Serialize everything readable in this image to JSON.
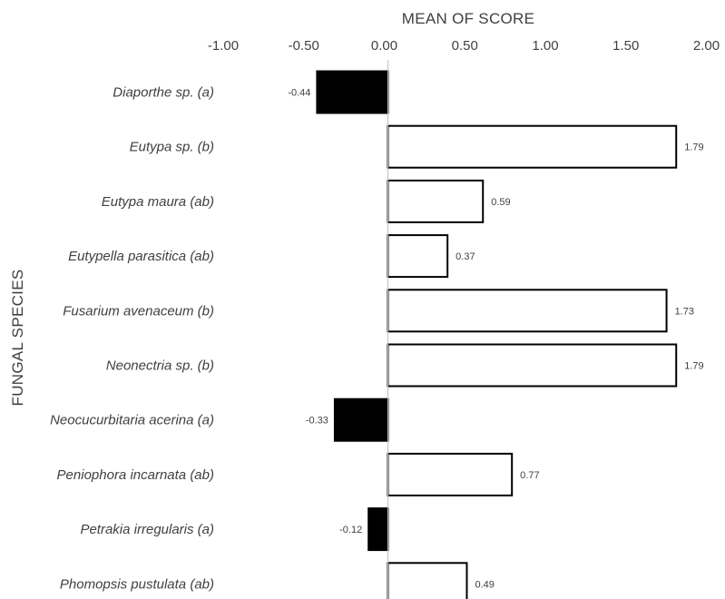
{
  "chart_data": {
    "type": "bar",
    "orientation": "horizontal",
    "title": "",
    "xlabel": "MEAN OF SCORE",
    "ylabel": "FUNGAL SPECIES",
    "xlim": [
      -1.0,
      2.0
    ],
    "x_ticks": [
      "-1.00",
      "-0.50",
      "0.00",
      "0.50",
      "1.00",
      "1.50",
      "2.00"
    ],
    "x_axis_position": "top",
    "grid": false,
    "legend": "none",
    "categories": [
      "Diaporthe sp. (a)",
      "Eutypa sp. (b)",
      "Eutypa maura (ab)",
      "Eutypella parasitica (ab)",
      "Fusarium avenaceum (b)",
      "Neonectria sp. (b)",
      "Neocucurbitaria acerina (a)",
      "Peniophora incarnata (ab)",
      "Petrakia irregularis (a)",
      "Phomopsis pustulata (ab)"
    ],
    "values": [
      -0.44,
      1.79,
      0.59,
      0.37,
      1.73,
      1.79,
      -0.33,
      0.77,
      -0.12,
      0.49
    ],
    "data_labels": [
      "-0.44",
      "1.79",
      "0.59",
      "0.37",
      "1.73",
      "1.79",
      "-0.33",
      "0.77",
      "-0.12",
      "0.49"
    ],
    "colors": {
      "negative_fill": "#000000",
      "positive_fill": "#ffffff",
      "bar_stroke": "#000000",
      "axis_line": "#bfbfbf",
      "text": "#404040"
    }
  }
}
